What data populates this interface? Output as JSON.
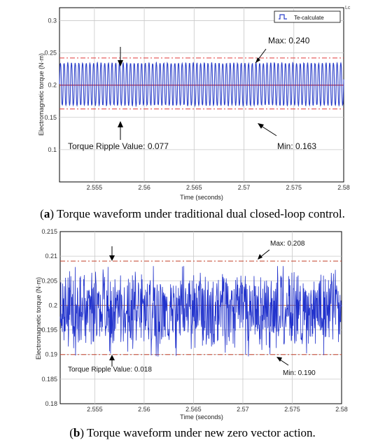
{
  "chart_data": [
    {
      "type": "line",
      "panel": "a",
      "caption_label": "a",
      "caption_text": "Torque waveform under traditional dual closed-loop control.",
      "xlabel": "Time (seconds)",
      "ylabel": "Electromagnetic torque (N·m)",
      "xlim": [
        2.5515,
        2.58
      ],
      "ylim": [
        0.05,
        0.32
      ],
      "xticks": [
        2.555,
        2.56,
        2.565,
        2.57,
        2.575,
        2.58
      ],
      "xtick_labels": [
        "2.555",
        "2.56",
        "2.565",
        "2.57",
        "2.575",
        "2.58"
      ],
      "yticks": [
        0.1,
        0.15,
        0.2,
        0.25,
        0.3
      ],
      "ytick_labels": [
        "0.1",
        "0.15",
        "0.2",
        "0.25",
        "0.3"
      ],
      "grid": true,
      "legend": {
        "position": "top-right",
        "entries": [
          "Te-calculate"
        ]
      },
      "corner_mark": "Lc",
      "series": [
        {
          "name": "Te-calculate",
          "color": "#2b3fc9",
          "waveform": "sinusoidal-ripple",
          "mean": 0.2,
          "min": 0.163,
          "max": 0.24,
          "period": 0.00037
        }
      ],
      "reference_lines": {
        "max": 0.242,
        "mean": 0.2,
        "min": 0.163,
        "max_color": "#e03a3a",
        "mean_color": "#dd1111"
      },
      "annotations": {
        "max_label": "Max: 0.240",
        "min_label": "Min:  0.163",
        "ripple_label": "Torque Ripple Value:  0.077"
      }
    },
    {
      "type": "line",
      "panel": "b",
      "caption_label": "b",
      "caption_text": "Torque waveform under new zero vector action.",
      "xlabel": "Time (seconds)",
      "ylabel": "Electromagnetic torque (N·m)",
      "xlim": [
        2.5515,
        2.58
      ],
      "ylim": [
        0.18,
        0.215
      ],
      "xticks": [
        2.555,
        2.56,
        2.565,
        2.57,
        2.575,
        2.58
      ],
      "xtick_labels": [
        "2.555",
        "2.56",
        "2.565",
        "2.57",
        "2.575",
        "2.58"
      ],
      "yticks": [
        0.18,
        0.185,
        0.19,
        0.195,
        0.2,
        0.205,
        0.21,
        0.215
      ],
      "ytick_labels": [
        "0.18",
        "0.185",
        "0.19",
        "0.195",
        "0.2",
        "0.205",
        "0.21",
        "0.215"
      ],
      "grid": true,
      "series": [
        {
          "name": "",
          "color": "#2233cc",
          "waveform": "noisy",
          "mean": 0.2,
          "min": 0.19,
          "max": 0.208
        }
      ],
      "reference_lines": {
        "max": 0.209,
        "mean": 0.2,
        "min": 0.19,
        "max_color": "#c2402a",
        "mean_color": "#d98a5a"
      },
      "annotations": {
        "max_label": "Max: 0.208",
        "min_label": "Min: 0.190",
        "ripple_label": "Torque Ripple Value: 0.018"
      }
    }
  ]
}
